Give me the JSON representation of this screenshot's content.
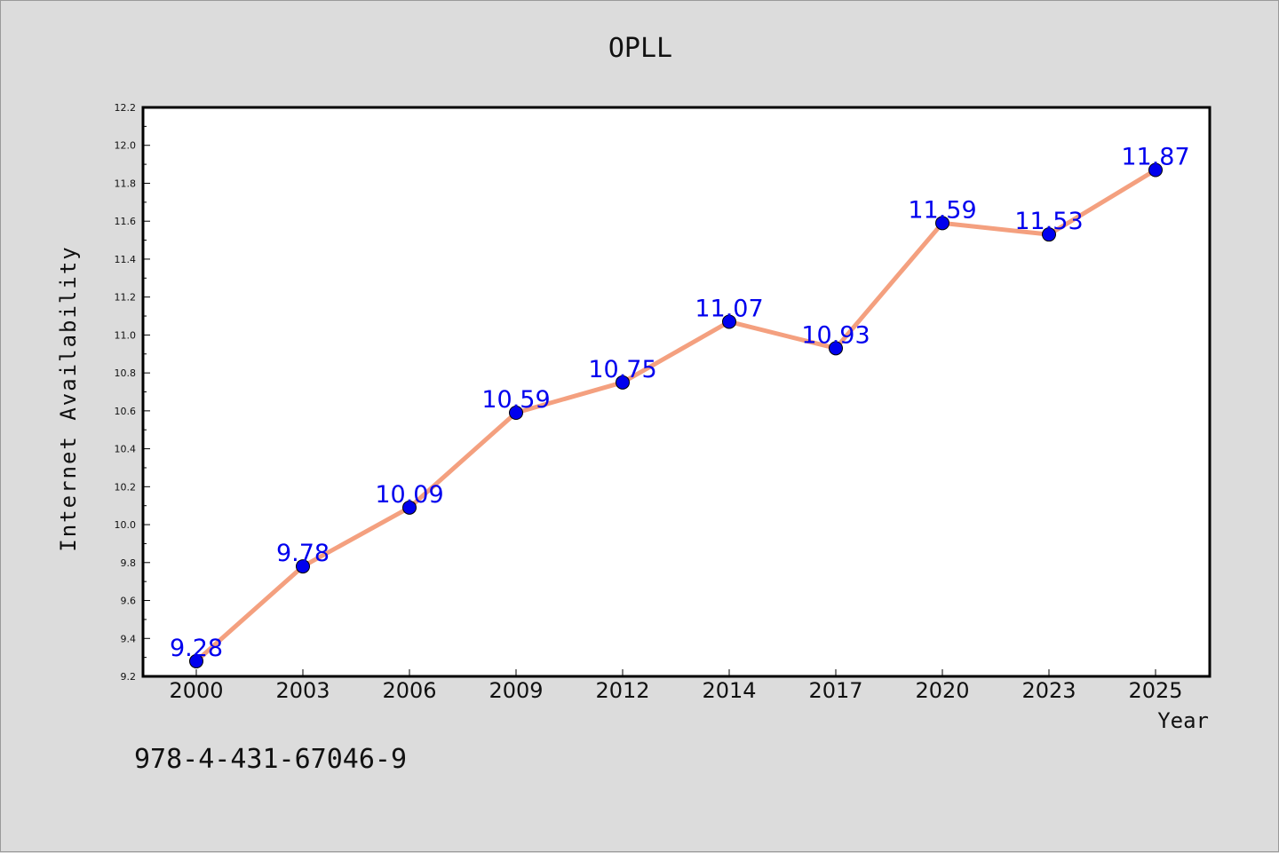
{
  "chart_data": {
    "type": "line",
    "title": "OPLL",
    "xlabel": "Year",
    "ylabel": "Internet Availability",
    "categories": [
      "2000",
      "2003",
      "2006",
      "2009",
      "2012",
      "2014",
      "2017",
      "2020",
      "2023",
      "2025"
    ],
    "series": [
      {
        "values": [
          9.28,
          9.78,
          10.09,
          10.59,
          10.75,
          11.07,
          10.93,
          11.59,
          11.53,
          11.87
        ],
        "data_labels": [
          "9.28",
          "9.78",
          "10.09",
          "10.59",
          "10.75",
          "11.07",
          "10.93",
          "11.59",
          "11.53",
          "11.87"
        ]
      }
    ],
    "ylim": [
      9.2,
      12.2
    ],
    "yticks": [
      "9.2",
      "9.4",
      "9.6",
      "9.8",
      "10.0",
      "10.2",
      "10.4",
      "10.6",
      "10.8",
      "11.0",
      "11.2",
      "11.4",
      "11.6",
      "11.8",
      "12.0",
      "12.2"
    ],
    "grid": false,
    "colors": {
      "line": "#f4a07f",
      "marker": "#0000ee",
      "label": "#0000ee",
      "background": "#dcdcdc",
      "plot_background": "#ffffff"
    }
  },
  "footer": {
    "text": "978-4-431-67046-9"
  }
}
